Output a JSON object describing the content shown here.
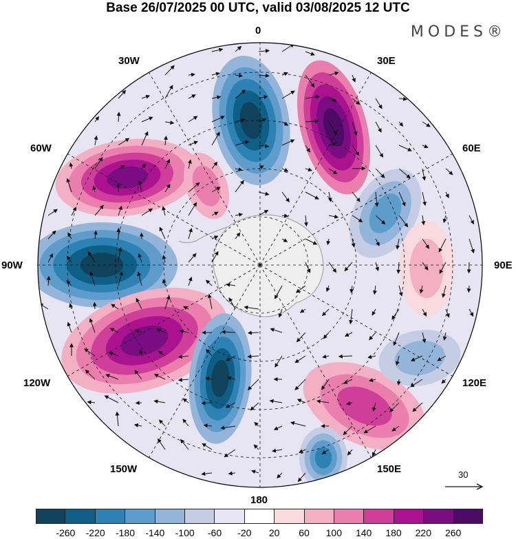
{
  "title": "Base 26/07/2025 00 UTC, valid 03/08/2025 12 UTC",
  "brand": "MODES®",
  "longitude_labels": {
    "lon_0": "0",
    "lon_30e": "30E",
    "lon_60e": "60E",
    "lon_90e": "90E",
    "lon_120e": "120E",
    "lon_150e": "150E",
    "lon_180": "180",
    "lon_150w": "150W",
    "lon_120w": "120W",
    "lon_90w": "90W",
    "lon_60w": "60W",
    "lon_30w": "30W"
  },
  "reference_vector": {
    "label": "30"
  },
  "legend": {
    "ticks": [
      "-260",
      "-220",
      "-180",
      "-140",
      "-100",
      "-60",
      "-20",
      "20",
      "60",
      "100",
      "140",
      "180",
      "220",
      "260"
    ],
    "colors": [
      "#11425c",
      "#0d5f86",
      "#2c82b3",
      "#5d9ccb",
      "#93b5d9",
      "#c4cde4",
      "#e7e5f1",
      "#ffffff",
      "#f9dade",
      "#f3b0c4",
      "#ea7fad",
      "#cf3e98",
      "#aa128f",
      "#7b0d82",
      "#4e0b66"
    ]
  },
  "colors": {
    "land": "#efefef",
    "coast": "#9a9a9a",
    "grid": "#111111",
    "vector": "#111111"
  }
}
